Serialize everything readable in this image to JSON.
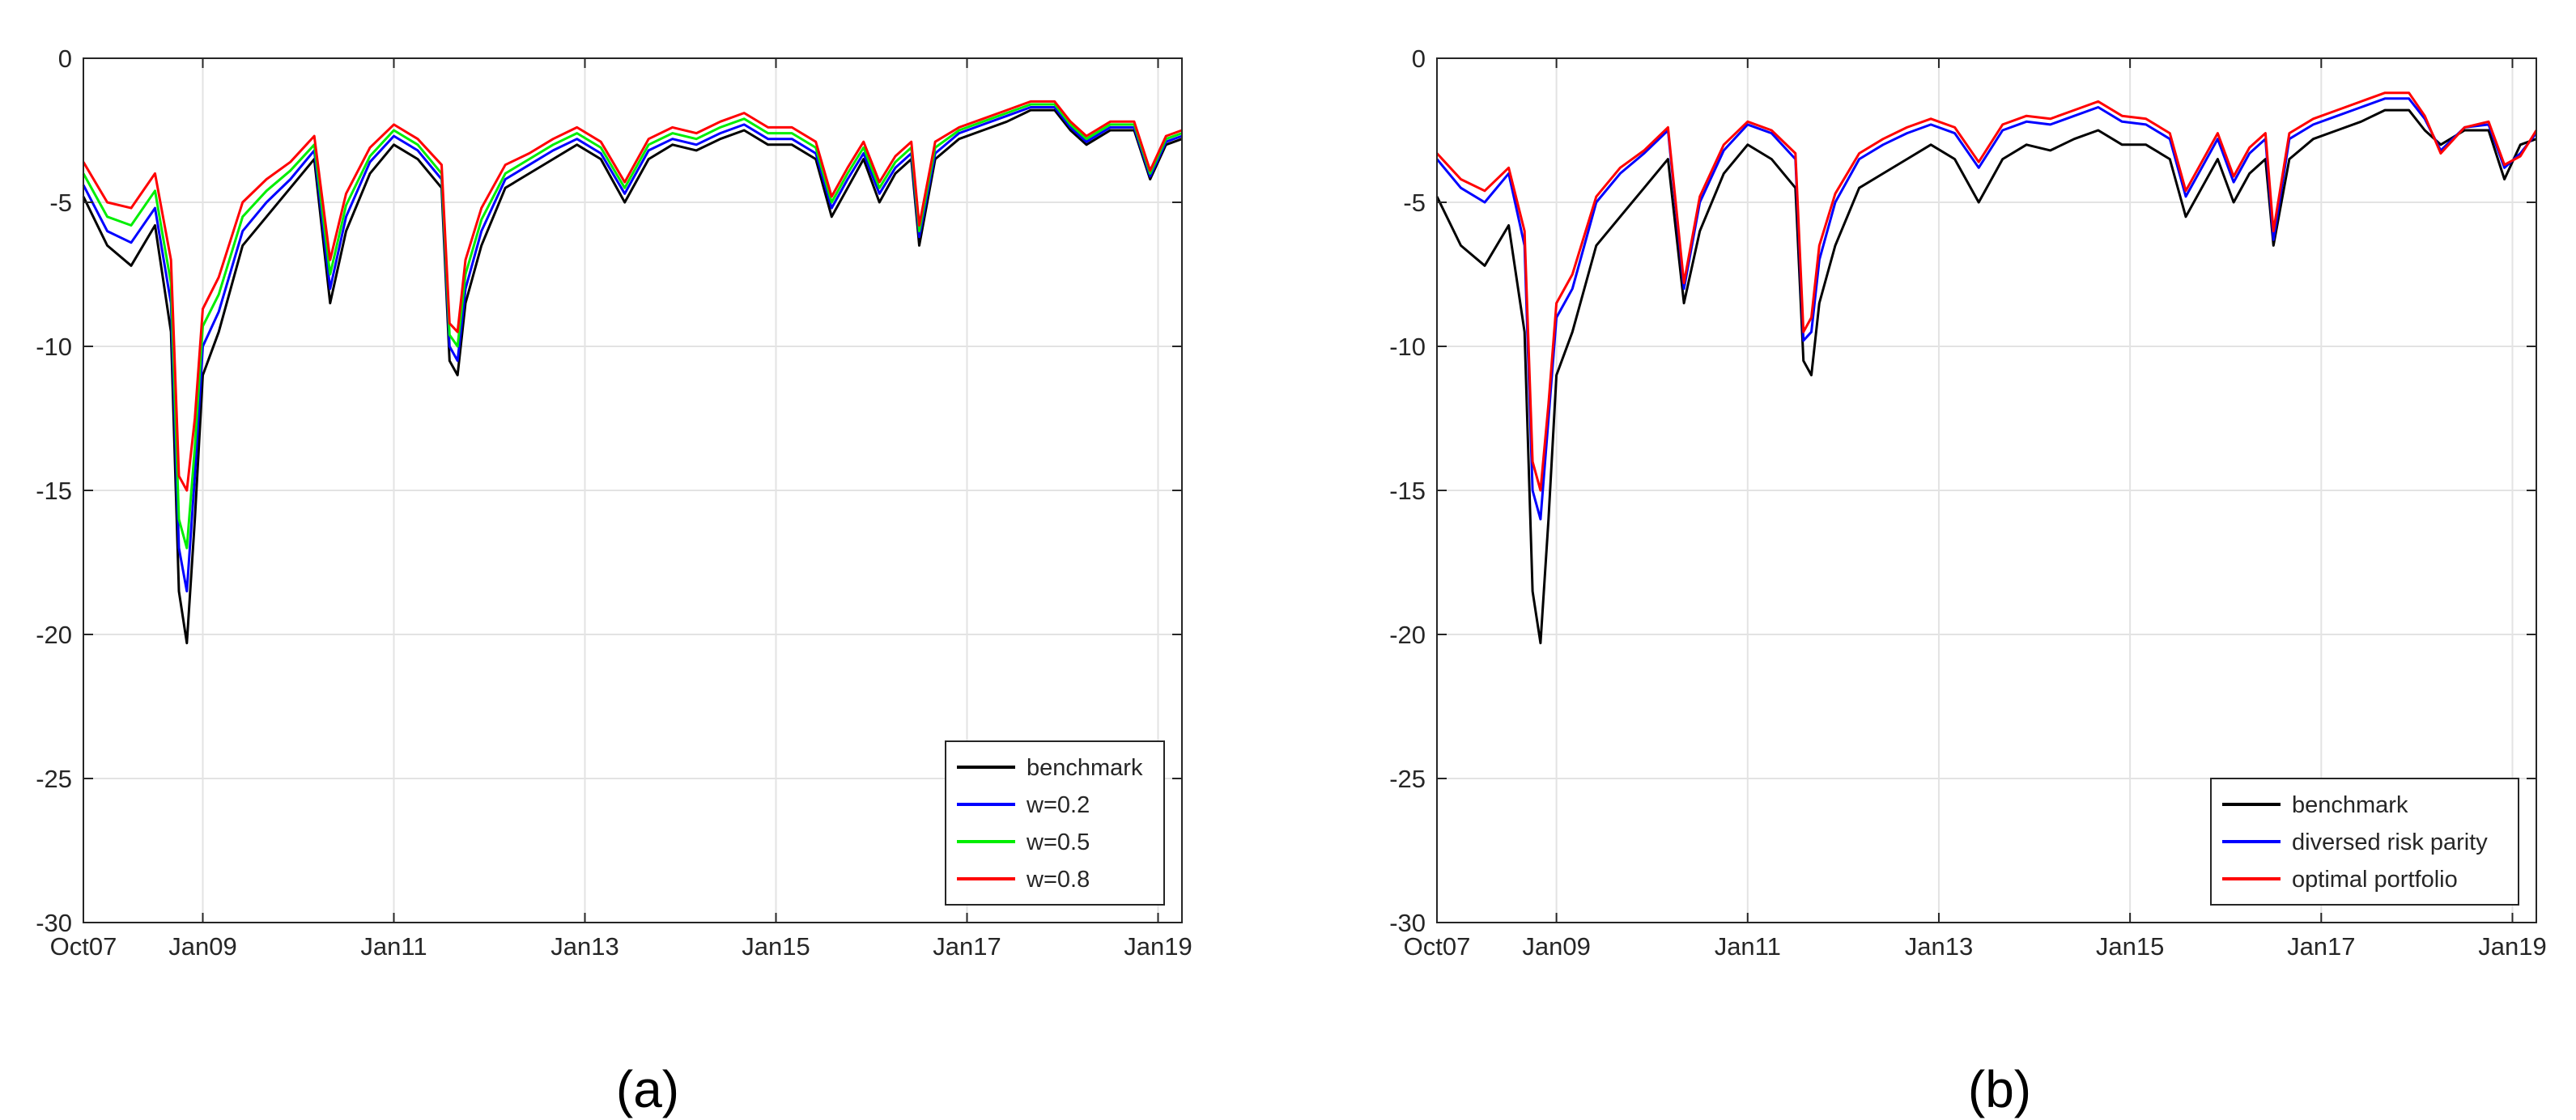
{
  "panels": [
    {
      "label": "(a)"
    },
    {
      "label": "(b)"
    }
  ],
  "chart_data": [
    {
      "type": "line",
      "title": "",
      "xlabel": "",
      "ylabel": "",
      "grid": true,
      "legend_position": "bottom-right",
      "x_tick_labels": [
        "Oct07",
        "Jan09",
        "Jan11",
        "Jan13",
        "Jan15",
        "Jan17",
        "Jan19"
      ],
      "x_tick_dates": [
        "2007-10",
        "2009-01",
        "2011-01",
        "2013-01",
        "2015-01",
        "2017-01",
        "2019-01"
      ],
      "xlim": [
        "2007-10",
        "2019-04"
      ],
      "y_ticks": [
        0,
        -5,
        -10,
        -15,
        -20,
        -25,
        -30
      ],
      "ylim": [
        -30,
        0
      ],
      "x": [
        "2007-10",
        "2008-01",
        "2008-04",
        "2008-07",
        "2008-09",
        "2008-10",
        "2008-11",
        "2008-12",
        "2009-01",
        "2009-03",
        "2009-06",
        "2009-09",
        "2009-12",
        "2010-03",
        "2010-05",
        "2010-07",
        "2010-10",
        "2011-01",
        "2011-04",
        "2011-07",
        "2011-08",
        "2011-09",
        "2011-10",
        "2011-12",
        "2012-03",
        "2012-06",
        "2012-09",
        "2012-12",
        "2013-03",
        "2013-06",
        "2013-09",
        "2013-12",
        "2014-03",
        "2014-06",
        "2014-09",
        "2014-12",
        "2015-03",
        "2015-06",
        "2015-08",
        "2015-10",
        "2015-12",
        "2016-02",
        "2016-04",
        "2016-06",
        "2016-07",
        "2016-09",
        "2016-12",
        "2017-03",
        "2017-06",
        "2017-09",
        "2017-12",
        "2018-02",
        "2018-04",
        "2018-07",
        "2018-10",
        "2018-12",
        "2019-02",
        "2019-04"
      ],
      "series": [
        {
          "name": "benchmark",
          "color": "#000000",
          "values": [
            -4.8,
            -6.5,
            -7.2,
            -5.8,
            -9.5,
            -18.5,
            -20.3,
            -16.0,
            -11.0,
            -9.5,
            -6.5,
            -5.5,
            -4.5,
            -3.5,
            -8.5,
            -6.0,
            -4.0,
            -3.0,
            -3.5,
            -4.5,
            -10.5,
            -11.0,
            -8.5,
            -6.5,
            -4.5,
            -4.0,
            -3.5,
            -3.0,
            -3.5,
            -5.0,
            -3.5,
            -3.0,
            -3.2,
            -2.8,
            -2.5,
            -3.0,
            -3.0,
            -3.5,
            -5.5,
            -4.5,
            -3.5,
            -5.0,
            -4.0,
            -3.5,
            -6.5,
            -3.5,
            -2.8,
            -2.5,
            -2.2,
            -1.8,
            -1.8,
            -2.5,
            -3.0,
            -2.5,
            -2.5,
            -4.2,
            -3.0,
            -2.8
          ]
        },
        {
          "name": "w=0.2",
          "color": "#0000ff",
          "values": [
            -4.4,
            -6.0,
            -6.4,
            -5.2,
            -8.5,
            -17.0,
            -18.5,
            -14.5,
            -10.0,
            -8.8,
            -6.0,
            -5.0,
            -4.2,
            -3.2,
            -8.0,
            -5.5,
            -3.6,
            -2.7,
            -3.2,
            -4.2,
            -10.0,
            -10.5,
            -8.0,
            -6.0,
            -4.2,
            -3.7,
            -3.2,
            -2.8,
            -3.3,
            -4.7,
            -3.2,
            -2.8,
            -3.0,
            -2.6,
            -2.3,
            -2.8,
            -2.8,
            -3.3,
            -5.2,
            -4.2,
            -3.3,
            -4.7,
            -3.8,
            -3.3,
            -6.2,
            -3.3,
            -2.6,
            -2.3,
            -2.0,
            -1.7,
            -1.7,
            -2.4,
            -2.9,
            -2.4,
            -2.4,
            -4.1,
            -2.9,
            -2.7
          ]
        },
        {
          "name": "w=0.5",
          "color": "#00ee00",
          "values": [
            -4.0,
            -5.5,
            -5.8,
            -4.6,
            -7.8,
            -16.0,
            -17.0,
            -13.5,
            -9.3,
            -8.2,
            -5.5,
            -4.6,
            -3.9,
            -3.0,
            -7.5,
            -5.1,
            -3.4,
            -2.5,
            -3.0,
            -4.0,
            -9.6,
            -10.0,
            -7.5,
            -5.6,
            -4.0,
            -3.5,
            -3.0,
            -2.6,
            -3.1,
            -4.5,
            -3.0,
            -2.6,
            -2.8,
            -2.4,
            -2.1,
            -2.6,
            -2.6,
            -3.1,
            -5.0,
            -4.0,
            -3.1,
            -4.5,
            -3.6,
            -3.1,
            -6.0,
            -3.1,
            -2.5,
            -2.2,
            -1.9,
            -1.6,
            -1.6,
            -2.3,
            -2.8,
            -2.3,
            -2.3,
            -4.0,
            -2.8,
            -2.6
          ]
        },
        {
          "name": "w=0.8",
          "color": "#ff0000",
          "values": [
            -3.6,
            -5.0,
            -5.2,
            -4.0,
            -7.0,
            -14.5,
            -15.0,
            -12.5,
            -8.7,
            -7.6,
            -5.0,
            -4.2,
            -3.6,
            -2.7,
            -7.0,
            -4.7,
            -3.1,
            -2.3,
            -2.8,
            -3.7,
            -9.2,
            -9.5,
            -7.0,
            -5.2,
            -3.7,
            -3.3,
            -2.8,
            -2.4,
            -2.9,
            -4.3,
            -2.8,
            -2.4,
            -2.6,
            -2.2,
            -1.9,
            -2.4,
            -2.4,
            -2.9,
            -4.8,
            -3.8,
            -2.9,
            -4.3,
            -3.4,
            -2.9,
            -5.8,
            -2.9,
            -2.4,
            -2.1,
            -1.8,
            -1.5,
            -1.5,
            -2.2,
            -2.7,
            -2.2,
            -2.2,
            -3.9,
            -2.7,
            -2.5
          ]
        }
      ]
    },
    {
      "type": "line",
      "title": "",
      "xlabel": "",
      "ylabel": "",
      "grid": true,
      "legend_position": "bottom-right",
      "x_tick_labels": [
        "Oct07",
        "Jan09",
        "Jan11",
        "Jan13",
        "Jan15",
        "Jan17",
        "Jan19"
      ],
      "x_tick_dates": [
        "2007-10",
        "2009-01",
        "2011-01",
        "2013-01",
        "2015-01",
        "2017-01",
        "2019-01"
      ],
      "xlim": [
        "2007-10",
        "2019-04"
      ],
      "y_ticks": [
        0,
        -5,
        -10,
        -15,
        -20,
        -25,
        -30
      ],
      "ylim": [
        -30,
        0
      ],
      "x": [
        "2007-10",
        "2008-01",
        "2008-04",
        "2008-07",
        "2008-09",
        "2008-10",
        "2008-11",
        "2008-12",
        "2009-01",
        "2009-03",
        "2009-06",
        "2009-09",
        "2009-12",
        "2010-03",
        "2010-05",
        "2010-07",
        "2010-10",
        "2011-01",
        "2011-04",
        "2011-07",
        "2011-08",
        "2011-09",
        "2011-10",
        "2011-12",
        "2012-03",
        "2012-06",
        "2012-09",
        "2012-12",
        "2013-03",
        "2013-06",
        "2013-09",
        "2013-12",
        "2014-03",
        "2014-06",
        "2014-09",
        "2014-12",
        "2015-03",
        "2015-06",
        "2015-08",
        "2015-10",
        "2015-12",
        "2016-02",
        "2016-04",
        "2016-06",
        "2016-07",
        "2016-09",
        "2016-12",
        "2017-03",
        "2017-06",
        "2017-09",
        "2017-12",
        "2018-02",
        "2018-04",
        "2018-07",
        "2018-10",
        "2018-12",
        "2019-02",
        "2019-04"
      ],
      "series": [
        {
          "name": "benchmark",
          "color": "#000000",
          "values": [
            -4.8,
            -6.5,
            -7.2,
            -5.8,
            -9.5,
            -18.5,
            -20.3,
            -16.0,
            -11.0,
            -9.5,
            -6.5,
            -5.5,
            -4.5,
            -3.5,
            -8.5,
            -6.0,
            -4.0,
            -3.0,
            -3.5,
            -4.5,
            -10.5,
            -11.0,
            -8.5,
            -6.5,
            -4.5,
            -4.0,
            -3.5,
            -3.0,
            -3.5,
            -5.0,
            -3.5,
            -3.0,
            -3.2,
            -2.8,
            -2.5,
            -3.0,
            -3.0,
            -3.5,
            -5.5,
            -4.5,
            -3.5,
            -5.0,
            -4.0,
            -3.5,
            -6.5,
            -3.5,
            -2.8,
            -2.5,
            -2.2,
            -1.8,
            -1.8,
            -2.5,
            -3.0,
            -2.5,
            -2.5,
            -4.2,
            -3.0,
            -2.8
          ]
        },
        {
          "name": "diversed risk parity",
          "color": "#0000ff",
          "values": [
            -3.5,
            -4.5,
            -5.0,
            -4.0,
            -6.5,
            -15.0,
            -16.0,
            -12.5,
            -9.0,
            -8.0,
            -5.0,
            -4.0,
            -3.3,
            -2.5,
            -8.0,
            -5.0,
            -3.2,
            -2.3,
            -2.6,
            -3.5,
            -9.8,
            -9.5,
            -7.0,
            -5.0,
            -3.5,
            -3.0,
            -2.6,
            -2.3,
            -2.6,
            -3.8,
            -2.5,
            -2.2,
            -2.3,
            -2.0,
            -1.7,
            -2.2,
            -2.3,
            -2.8,
            -4.8,
            -3.8,
            -2.8,
            -4.3,
            -3.3,
            -2.8,
            -6.3,
            -2.8,
            -2.3,
            -2.0,
            -1.7,
            -1.4,
            -1.4,
            -2.1,
            -3.2,
            -2.4,
            -2.3,
            -3.8,
            -3.3,
            -2.6
          ]
        },
        {
          "name": "optimal portfolio",
          "color": "#ff0000",
          "values": [
            -3.3,
            -4.2,
            -4.6,
            -3.8,
            -6.0,
            -14.0,
            -15.0,
            -12.0,
            -8.5,
            -7.5,
            -4.8,
            -3.8,
            -3.2,
            -2.4,
            -7.8,
            -4.8,
            -3.0,
            -2.2,
            -2.5,
            -3.3,
            -9.5,
            -9.0,
            -6.5,
            -4.7,
            -3.3,
            -2.8,
            -2.4,
            -2.1,
            -2.4,
            -3.6,
            -2.3,
            -2.0,
            -2.1,
            -1.8,
            -1.5,
            -2.0,
            -2.1,
            -2.6,
            -4.6,
            -3.6,
            -2.6,
            -4.1,
            -3.1,
            -2.6,
            -6.0,
            -2.6,
            -2.1,
            -1.8,
            -1.5,
            -1.2,
            -1.2,
            -2.0,
            -3.3,
            -2.4,
            -2.2,
            -3.7,
            -3.4,
            -2.5
          ]
        }
      ]
    }
  ]
}
